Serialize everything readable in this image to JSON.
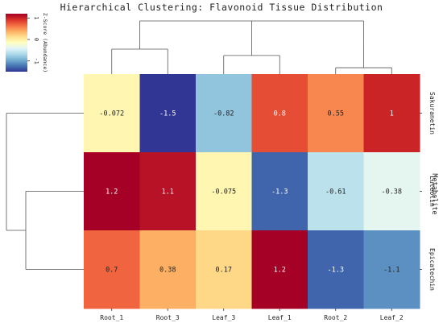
{
  "chart_data": {
    "type": "heatmap",
    "title": "Hierarchical Clustering: Flavonoid Tissue Distribution",
    "columns": [
      "Root_1",
      "Root_3",
      "Leaf_3",
      "Leaf_1",
      "Root_2",
      "Leaf_2"
    ],
    "rows": [
      "Sakuranetin",
      "Luteolin",
      "Epicatechin"
    ],
    "row_axis_label": "Metabolite",
    "values": [
      [
        -0.072,
        -1.5,
        -0.82,
        0.8,
        0.55,
        1
      ],
      [
        1.2,
        1.1,
        -0.075,
        -1.3,
        -0.61,
        -0.38
      ],
      [
        0.7,
        0.38,
        0.17,
        1.2,
        -1.3,
        -1.1
      ]
    ],
    "value_labels": [
      [
        "-0.072",
        "-1.5",
        "-0.82",
        "0.8",
        "0.55",
        "1"
      ],
      [
        "1.2",
        "1.1",
        "-0.075",
        "-1.3",
        "-0.61",
        "-0.38"
      ],
      [
        "0.7",
        "0.38",
        "0.17",
        "1.2",
        "-1.3",
        "-1.1"
      ]
    ],
    "colormap": "RdYlBu_r",
    "vmin": -1.5,
    "vmax": 1.2,
    "colorbar": {
      "label": "Z-Score (Abundance)",
      "ticks": [
        1,
        0,
        -1
      ],
      "tick_labels": [
        "1",
        "0",
        "-1"
      ],
      "placement": "top-left"
    },
    "row_dendrogram": {
      "placement": "left",
      "merges": [
        {
          "members": [
            "Luteolin",
            "Epicatechin"
          ],
          "height": 0.75
        },
        {
          "members": [
            "Sakuranetin",
            "Luteolin",
            "Epicatechin"
          ],
          "height": 1.0
        }
      ]
    },
    "column_dendrogram": {
      "placement": "top",
      "merges": [
        {
          "members": [
            "Root_2",
            "Leaf_2"
          ],
          "height": 0.12
        },
        {
          "members": [
            "Leaf_3",
            "Leaf_1"
          ],
          "height": 0.35
        },
        {
          "members": [
            "Root_1",
            "Root_3"
          ],
          "height": 0.47
        },
        {
          "members": [
            "Root_1",
            "Root_3",
            "Leaf_3"
          ],
          "height": 0.47
        },
        {
          "members": [
            "Leaf_1",
            "Root_2",
            "Leaf_2"
          ],
          "height": 0.6
        },
        {
          "members": [
            "Root_1",
            "Root_3",
            "Leaf_3",
            "Leaf_1",
            "Root_2",
            "Leaf_2"
          ],
          "height": 1.0
        }
      ]
    }
  }
}
